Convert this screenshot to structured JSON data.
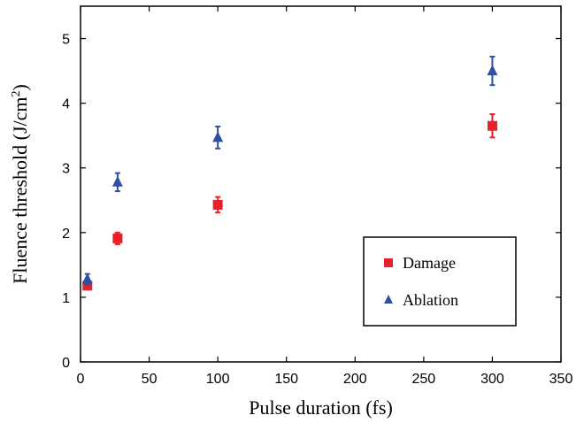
{
  "chart_data": {
    "type": "scatter",
    "title": "",
    "xlabel": "Pulse duration (fs)",
    "ylabel": "Fluence threshold (J/cm",
    "ylabel_sup": "2",
    "ylabel_close": ")",
    "xlim": [
      0,
      350
    ],
    "ylim": [
      0,
      5.5
    ],
    "x_ticks": [
      0,
      50,
      100,
      150,
      200,
      250,
      300,
      350
    ],
    "y_ticks": [
      0,
      1,
      2,
      3,
      4,
      5
    ],
    "grid": false,
    "legend_position": "lower-right",
    "series": [
      {
        "name": "Damage",
        "marker": "square",
        "color": "#e8202a",
        "x": [
          5,
          27,
          100,
          300
        ],
        "y": [
          1.18,
          1.91,
          2.43,
          3.65
        ],
        "err": [
          0.06,
          0.09,
          0.12,
          0.18
        ]
      },
      {
        "name": "Ablation",
        "marker": "triangle",
        "color": "#2f4fa2",
        "x": [
          5,
          27,
          100,
          300
        ],
        "y": [
          1.28,
          2.78,
          3.47,
          4.5
        ],
        "err": [
          0.08,
          0.14,
          0.17,
          0.22
        ]
      }
    ]
  }
}
